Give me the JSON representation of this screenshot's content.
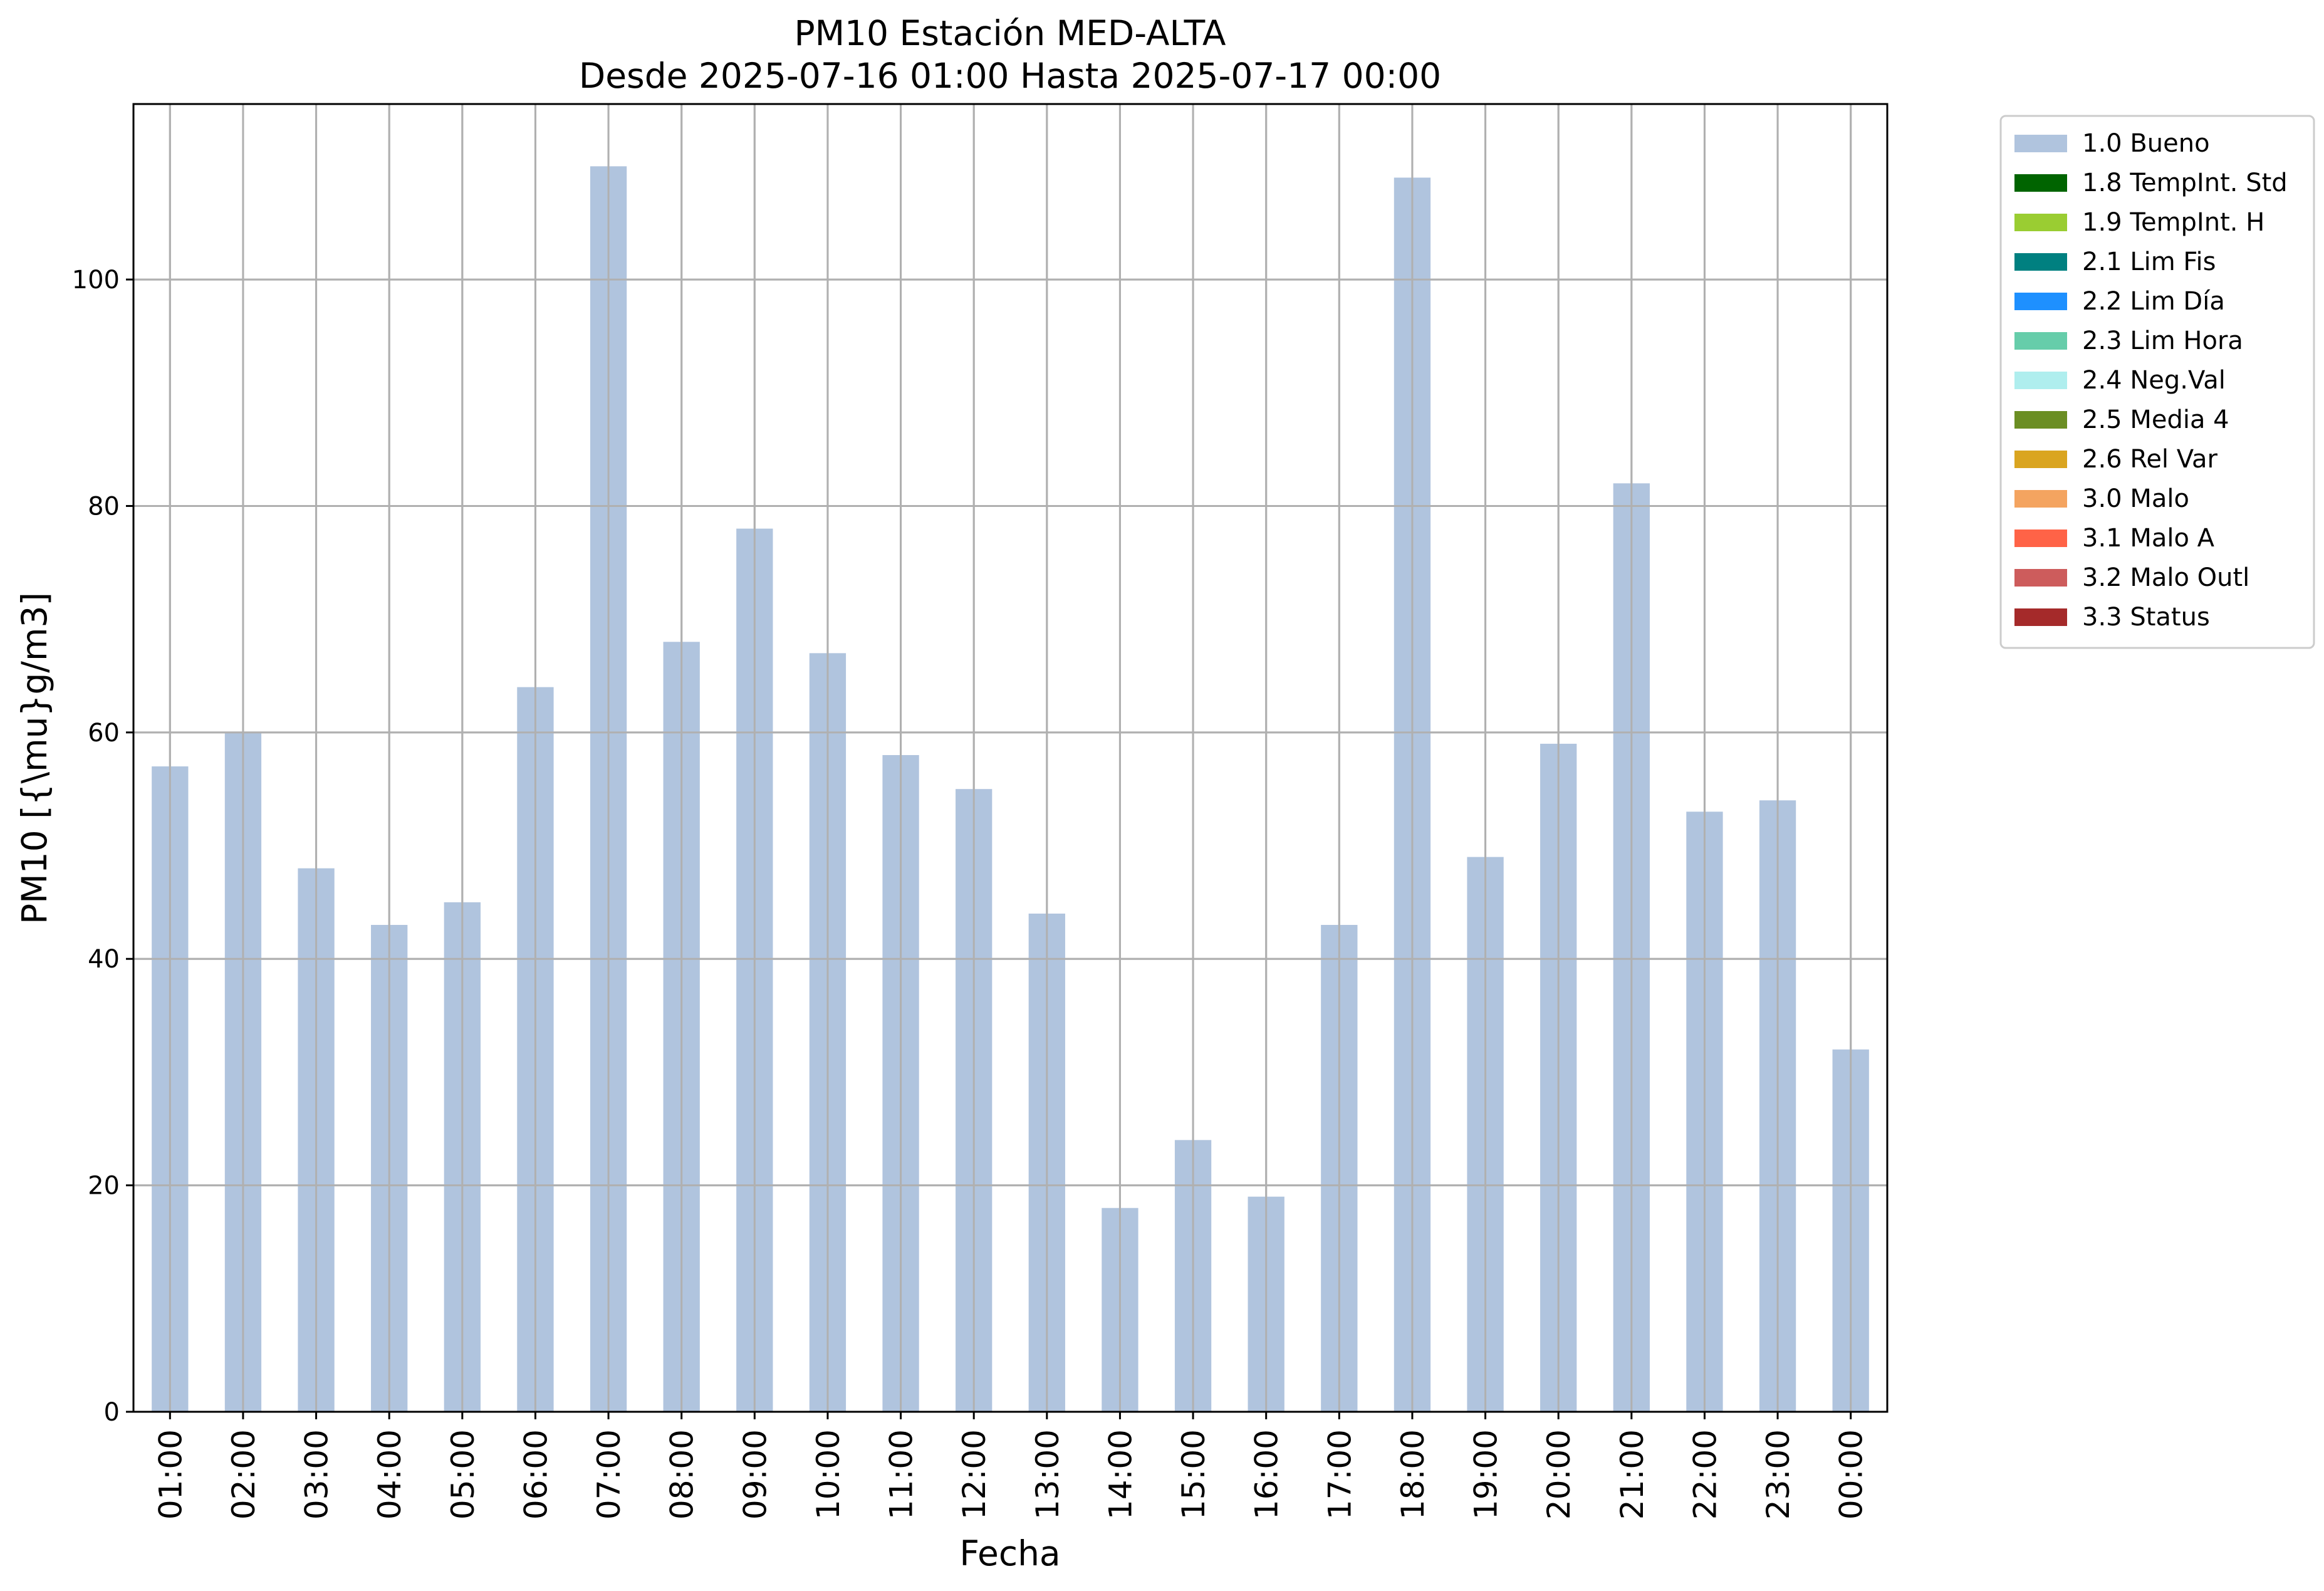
{
  "chart_data": {
    "type": "bar",
    "title": "PM10 Estación MED-ALTA",
    "subtitle": "Desde 2025-07-16 01:00 Hasta 2025-07-17 00:00",
    "xlabel": "Fecha",
    "ylabel": "PM10 [{\\mu}g/m3]",
    "ylim": [
      0,
      115.5
    ],
    "yticks": [
      0,
      20,
      40,
      60,
      80,
      100
    ],
    "grid": true,
    "legend_position": "outside-top-right",
    "categories": [
      "01:00",
      "02:00",
      "03:00",
      "04:00",
      "05:00",
      "06:00",
      "07:00",
      "08:00",
      "09:00",
      "10:00",
      "11:00",
      "12:00",
      "13:00",
      "14:00",
      "15:00",
      "16:00",
      "17:00",
      "18:00",
      "19:00",
      "20:00",
      "21:00",
      "22:00",
      "23:00",
      "00:00"
    ],
    "series": [
      {
        "name": "1.0 Bueno",
        "color": "#b0c4de",
        "values": [
          57,
          60,
          48,
          43,
          45,
          64,
          110,
          68,
          78,
          67,
          58,
          55,
          44,
          18,
          24,
          19,
          43,
          109,
          49,
          59,
          82,
          53,
          54,
          32
        ]
      }
    ],
    "legend": [
      {
        "label": "1.0 Bueno",
        "color": "#b0c4de"
      },
      {
        "label": "1.8 TempInt. Std",
        "color": "#006400"
      },
      {
        "label": "1.9 TempInt. H",
        "color": "#9acd32"
      },
      {
        "label": "2.1 Lim Fis",
        "color": "#008080"
      },
      {
        "label": "2.2 Lim Día",
        "color": "#1e90ff"
      },
      {
        "label": "2.3 Lim Hora",
        "color": "#66cdaa"
      },
      {
        "label": "2.4 Neg.Val",
        "color": "#afeeee"
      },
      {
        "label": "2.5 Media 4",
        "color": "#6b8e23"
      },
      {
        "label": "2.6 Rel Var",
        "color": "#daa520"
      },
      {
        "label": "3.0 Malo",
        "color": "#f4a460"
      },
      {
        "label": "3.1 Malo A",
        "color": "#ff6347"
      },
      {
        "label": "3.2 Malo Outl",
        "color": "#cd5c5c"
      },
      {
        "label": "3.3 Status",
        "color": "#a52a2a"
      }
    ]
  }
}
